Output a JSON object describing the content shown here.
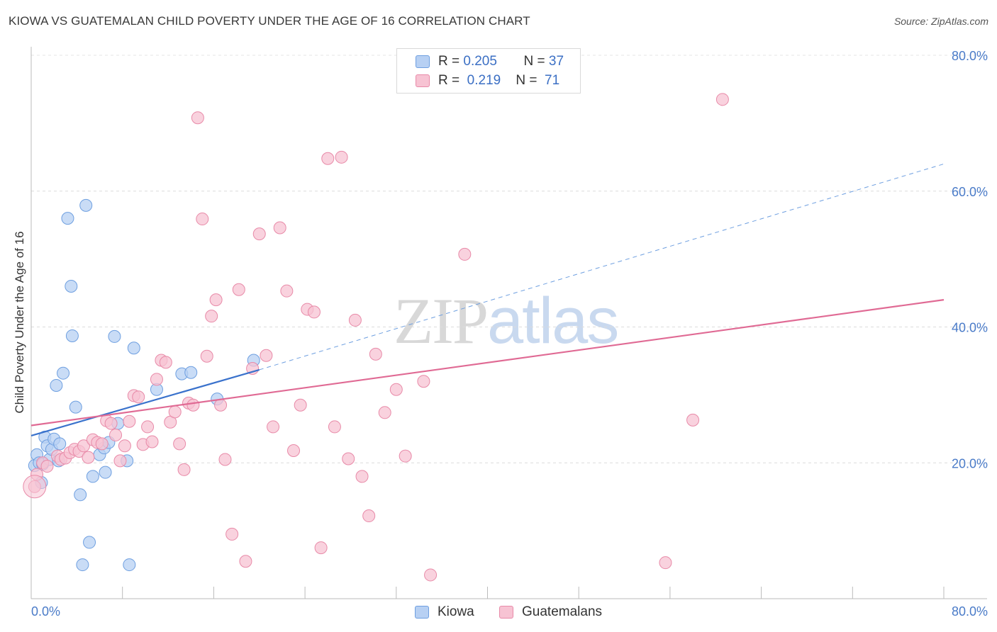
{
  "chart_data": {
    "type": "scatter",
    "title": "KIOWA VS GUATEMALAN CHILD POVERTY UNDER THE AGE OF 16 CORRELATION CHART",
    "source": "Source: ZipAtlas.com",
    "ylabel": "Child Poverty Under the Age of 16",
    "xlabel": "",
    "xlim": [
      0,
      80
    ],
    "ylim": [
      0,
      80
    ],
    "x_tick_labels": [
      "0.0%",
      "80.0%"
    ],
    "y_tick_labels": [
      "20.0%",
      "40.0%",
      "60.0%",
      "80.0%"
    ],
    "y_ticks": [
      20,
      40,
      60,
      80
    ],
    "watermark": {
      "zip": "ZIP",
      "atlas": "atlas"
    },
    "legend": [
      {
        "label": "R =",
        "r": "0.205",
        "n_label": "N =",
        "n": "37"
      },
      {
        "label": "R =",
        "r": "0.219",
        "n_label": "N =",
        "n": "71"
      }
    ],
    "series": [
      {
        "name": "Kiowa",
        "color": "#6e9fe0",
        "fill": "#b7d0f3",
        "trend": {
          "x": [
            0,
            20
          ],
          "y": [
            24.0,
            33.7
          ],
          "dashed_to_x": 80,
          "dashed_to_y": 64.0
        },
        "points": [
          [
            0.3,
            19.6
          ],
          [
            0.5,
            21.2
          ],
          [
            0.7,
            20.0
          ],
          [
            0.9,
            17.1
          ],
          [
            1.0,
            19.8
          ],
          [
            1.2,
            23.8
          ],
          [
            1.4,
            22.5
          ],
          [
            1.6,
            20.5
          ],
          [
            1.8,
            22.0
          ],
          [
            2.0,
            23.5
          ],
          [
            2.2,
            31.4
          ],
          [
            2.4,
            20.3
          ],
          [
            2.5,
            22.8
          ],
          [
            2.8,
            33.2
          ],
          [
            3.2,
            56.0
          ],
          [
            3.5,
            46.0
          ],
          [
            3.6,
            38.7
          ],
          [
            3.9,
            28.2
          ],
          [
            4.3,
            15.3
          ],
          [
            4.5,
            5.0
          ],
          [
            4.8,
            57.9
          ],
          [
            5.1,
            8.3
          ],
          [
            5.4,
            18.0
          ],
          [
            6.0,
            21.2
          ],
          [
            6.4,
            22.2
          ],
          [
            6.5,
            18.6
          ],
          [
            6.8,
            23.0
          ],
          [
            7.3,
            38.6
          ],
          [
            7.6,
            25.8
          ],
          [
            8.4,
            20.3
          ],
          [
            8.6,
            5.0
          ],
          [
            9.0,
            36.9
          ],
          [
            11.0,
            30.8
          ],
          [
            13.2,
            33.1
          ],
          [
            14.0,
            33.3
          ],
          [
            16.3,
            29.4
          ],
          [
            19.5,
            35.1
          ]
        ]
      },
      {
        "name": "Guatemalans",
        "color": "#e88aa8",
        "fill": "#f7c3d3",
        "trend": {
          "x": [
            0,
            80
          ],
          "y": [
            25.5,
            44.0
          ]
        },
        "points": [
          [
            0.3,
            16.5
          ],
          [
            0.5,
            18.3
          ],
          [
            1.0,
            20.0
          ],
          [
            1.4,
            19.5
          ],
          [
            2.3,
            21.0
          ],
          [
            2.6,
            20.5
          ],
          [
            3.0,
            20.7
          ],
          [
            3.4,
            21.5
          ],
          [
            3.8,
            22.0
          ],
          [
            4.2,
            21.7
          ],
          [
            4.6,
            22.5
          ],
          [
            5.0,
            20.8
          ],
          [
            5.4,
            23.4
          ],
          [
            5.8,
            23.0
          ],
          [
            6.2,
            22.8
          ],
          [
            6.6,
            26.2
          ],
          [
            7.0,
            25.8
          ],
          [
            7.4,
            24.1
          ],
          [
            7.8,
            20.3
          ],
          [
            8.2,
            22.5
          ],
          [
            8.6,
            26.1
          ],
          [
            9.0,
            29.9
          ],
          [
            9.4,
            29.7
          ],
          [
            9.8,
            22.7
          ],
          [
            10.2,
            25.3
          ],
          [
            10.6,
            23.1
          ],
          [
            11.0,
            32.3
          ],
          [
            11.4,
            35.1
          ],
          [
            11.8,
            34.8
          ],
          [
            12.2,
            26.0
          ],
          [
            12.6,
            27.5
          ],
          [
            13.0,
            22.8
          ],
          [
            13.4,
            19.0
          ],
          [
            13.8,
            28.8
          ],
          [
            14.2,
            28.5
          ],
          [
            14.6,
            70.8
          ],
          [
            15.0,
            55.9
          ],
          [
            15.4,
            35.7
          ],
          [
            15.8,
            41.6
          ],
          [
            16.2,
            44.0
          ],
          [
            16.6,
            28.5
          ],
          [
            17.0,
            20.5
          ],
          [
            17.6,
            9.5
          ],
          [
            18.2,
            45.5
          ],
          [
            18.8,
            5.5
          ],
          [
            19.4,
            33.9
          ],
          [
            20.0,
            53.7
          ],
          [
            20.6,
            35.8
          ],
          [
            21.2,
            25.3
          ],
          [
            21.8,
            54.6
          ],
          [
            22.4,
            45.3
          ],
          [
            23.0,
            21.8
          ],
          [
            23.6,
            28.5
          ],
          [
            24.2,
            42.6
          ],
          [
            24.8,
            42.2
          ],
          [
            25.4,
            7.5
          ],
          [
            26.0,
            64.8
          ],
          [
            26.6,
            25.3
          ],
          [
            27.2,
            65.0
          ],
          [
            27.8,
            20.6
          ],
          [
            28.4,
            41.0
          ],
          [
            29.0,
            18.0
          ],
          [
            29.6,
            12.2
          ],
          [
            30.2,
            36.0
          ],
          [
            31.0,
            27.4
          ],
          [
            32.0,
            30.8
          ],
          [
            32.8,
            21.0
          ],
          [
            34.4,
            32.0
          ],
          [
            35.0,
            3.5
          ],
          [
            38.0,
            50.7
          ],
          [
            58.0,
            26.3
          ]
        ],
        "extra_points": [
          [
            55.6,
            5.3
          ],
          [
            60.6,
            73.5
          ]
        ]
      }
    ]
  },
  "bottom_legend": [
    {
      "label": "Kiowa"
    },
    {
      "label": "Guatemalans"
    }
  ]
}
